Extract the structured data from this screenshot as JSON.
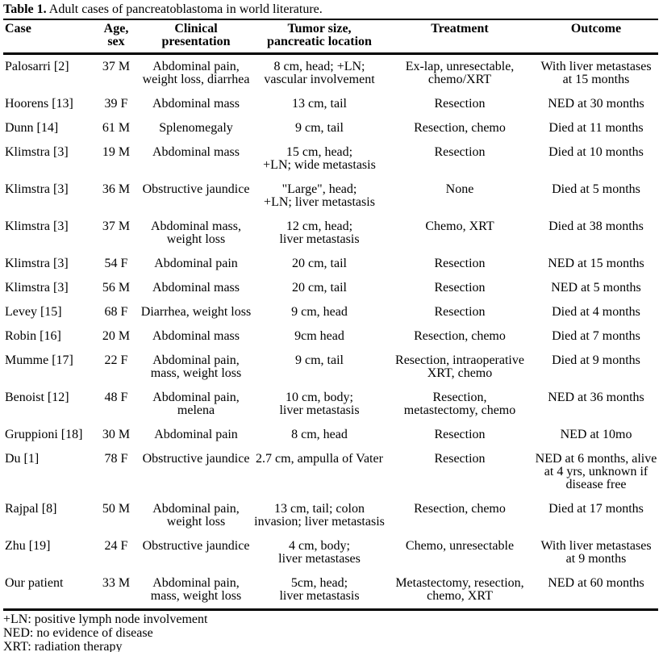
{
  "title": {
    "label": "Table 1.",
    "caption": " Adult cases of pancreatoblastoma in world literature."
  },
  "table": {
    "columns": [
      "Case",
      "Age,\nsex",
      "Clinical\npresentation",
      "Tumor size,\npancreatic location",
      "Treatment",
      "Outcome"
    ],
    "rows": [
      [
        "Palosarri [2]",
        "37 M",
        "Abdominal pain,\nweight loss, diarrhea",
        "8 cm, head; +LN;\nvascular involvement",
        "Ex-lap, unresectable,\nchemo/XRT",
        "With liver metastases\nat 15 months"
      ],
      [
        "Hoorens [13]",
        "39 F",
        "Abdominal mass",
        "13 cm, tail",
        "Resection",
        "NED at 30 months"
      ],
      [
        "Dunn [14]",
        "61 M",
        "Splenomegaly",
        "9 cm, tail",
        "Resection, chemo",
        "Died at 11 months"
      ],
      [
        "Klimstra [3]",
        "19 M",
        "Abdominal mass",
        "15 cm, head;\n+LN; wide metastasis",
        "Resection",
        "Died at 10 months"
      ],
      [
        "Klimstra [3]",
        "36 M",
        "Obstructive jaundice",
        "\"Large\", head;\n+LN; liver metastasis",
        "None",
        "Died at 5 months"
      ],
      [
        "Klimstra [3]",
        "37 M",
        "Abdominal mass,\nweight loss",
        "12 cm, head;\nliver metastasis",
        "Chemo, XRT",
        "Died at 38 months"
      ],
      [
        "Klimstra [3]",
        "54 F",
        "Abdominal pain",
        "20 cm, tail",
        "Resection",
        "NED at 15 months"
      ],
      [
        "Klimstra [3]",
        "56 M",
        "Abdominal mass",
        "20 cm, tail",
        "Resection",
        "NED at 5 months"
      ],
      [
        "Levey [15]",
        "68 F",
        "Diarrhea, weight loss",
        "9 cm, head",
        "Resection",
        "Died at 4 months"
      ],
      [
        "Robin [16]",
        "20 M",
        "Abdominal mass",
        "9cm head",
        "Resection, chemo",
        "Died at 7 months"
      ],
      [
        "Mumme [17]",
        "22 F",
        "Abdominal pain,\nmass, weight loss",
        "9 cm, tail",
        "Resection, intraoperative\nXRT, chemo",
        "Died at 9 months"
      ],
      [
        "Benoist [12]",
        "48 F",
        "Abdominal pain,\nmelena",
        "10 cm, body;\nliver metastasis",
        "Resection,\nmetastectomy, chemo",
        "NED at 36 months"
      ],
      [
        "Gruppioni [18]",
        "30 M",
        "Abdominal pain",
        "8 cm, head",
        "Resection",
        "NED at 10mo"
      ],
      [
        "Du [1]",
        "78 F",
        "Obstructive jaundice",
        "2.7 cm, ampulla of Vater",
        "Resection",
        "NED at 6 months, alive\nat 4 yrs, unknown if\ndisease free"
      ],
      [
        "Rajpal [8]",
        "50 M",
        "Abdominal pain,\nweight loss",
        "13 cm, tail; colon\ninvasion; liver metastasis",
        "Resection, chemo",
        "Died at 17 months"
      ],
      [
        "Zhu [19]",
        "24 F",
        "Obstructive jaundice",
        "4 cm, body;\nliver metastases",
        "Chemo, unresectable",
        "With liver metastases\nat 9 months"
      ],
      [
        "Our patient",
        "33 M",
        "Abdominal pain,\nmass, weight loss",
        "5cm, head;\nliver metastasis",
        "Metastectomy, resection,\nchemo, XRT",
        "NED at 60 months"
      ]
    ]
  },
  "footnotes": [
    "+LN: positive lymph node involvement",
    "NED: no evidence of disease",
    "XRT: radiation therapy"
  ]
}
